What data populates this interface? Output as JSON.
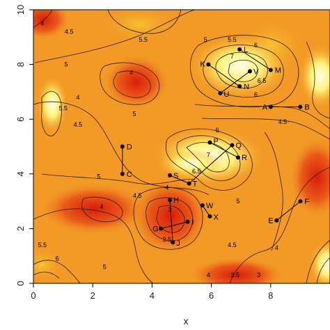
{
  "chart_data": {
    "type": "heatmap",
    "title": "",
    "xlabel": "x",
    "ylabel": "",
    "xlim": [
      0,
      10
    ],
    "ylim": [
      0,
      10
    ],
    "x_ticks": [
      "0",
      "2",
      "4",
      "6",
      "8"
    ],
    "y_ticks": [
      "0",
      "2",
      "4",
      "6",
      "8",
      "10"
    ],
    "colors": {
      "low": "#e32310",
      "mid": "#f5a623",
      "high": "#fffbe0"
    },
    "contour_labels": [
      {
        "text": "4",
        "x": 0.3,
        "y": 9.5
      },
      {
        "text": "4.5",
        "x": 1.2,
        "y": 9.2
      },
      {
        "text": "5.5",
        "x": 3.7,
        "y": 8.9
      },
      {
        "text": "4.5",
        "x": 1.5,
        "y": 5.8
      },
      {
        "text": "5",
        "x": 1.1,
        "y": 8.0
      },
      {
        "text": "4",
        "x": 3.3,
        "y": 7.7
      },
      {
        "text": "4",
        "x": 1.5,
        "y": 6.8
      },
      {
        "text": "5",
        "x": 3.4,
        "y": 6.2
      },
      {
        "text": "5.5",
        "x": 1.0,
        "y": 6.4
      },
      {
        "text": "5",
        "x": 2.2,
        "y": 3.9
      },
      {
        "text": "4",
        "x": 2.3,
        "y": 2.8
      },
      {
        "text": "4.5",
        "x": 3.5,
        "y": 3.2
      },
      {
        "text": "5",
        "x": 5.8,
        "y": 8.9
      },
      {
        "text": "5.5",
        "x": 6.7,
        "y": 8.9
      },
      {
        "text": "6",
        "x": 7.5,
        "y": 8.7
      },
      {
        "text": "7",
        "x": 6.7,
        "y": 8.3
      },
      {
        "text": "6.5",
        "x": 7.7,
        "y": 7.4
      },
      {
        "text": "6",
        "x": 7.5,
        "y": 6.9
      },
      {
        "text": "4.5",
        "x": 8.4,
        "y": 5.9
      },
      {
        "text": "6",
        "x": 6.2,
        "y": 5.6
      },
      {
        "text": "6.5",
        "x": 5.5,
        "y": 4.1
      },
      {
        "text": "7",
        "x": 5.9,
        "y": 4.7
      },
      {
        "text": "5",
        "x": 6.9,
        "y": 3.0
      },
      {
        "text": "4.5",
        "x": 6.7,
        "y": 1.4
      },
      {
        "text": "4",
        "x": 8.2,
        "y": 1.3
      },
      {
        "text": "5",
        "x": 2.4,
        "y": 0.6
      },
      {
        "text": "5.5",
        "x": 0.3,
        "y": 1.4
      },
      {
        "text": "6",
        "x": 0.8,
        "y": 0.9
      },
      {
        "text": "4",
        "x": 4.5,
        "y": 3.5
      },
      {
        "text": "3",
        "x": 4.6,
        "y": 2.7
      },
      {
        "text": "3.5",
        "x": 4.5,
        "y": 1.6
      },
      {
        "text": "3",
        "x": 7.6,
        "y": 0.3
      },
      {
        "text": "3.5",
        "x": 6.8,
        "y": 0.3
      },
      {
        "text": "4",
        "x": 5.9,
        "y": 0.3
      }
    ],
    "points": [
      {
        "label": "A",
        "x": 8.0,
        "y": 6.45
      },
      {
        "label": "B",
        "x": 9.0,
        "y": 6.45
      },
      {
        "label": "C",
        "x": 3.0,
        "y": 4.0
      },
      {
        "label": "D",
        "x": 3.0,
        "y": 5.0
      },
      {
        "label": "E",
        "x": 8.2,
        "y": 2.3
      },
      {
        "label": "F",
        "x": 9.0,
        "y": 3.0
      },
      {
        "label": "G",
        "x": 4.3,
        "y": 2.0
      },
      {
        "label": "H",
        "x": 4.6,
        "y": 3.05
      },
      {
        "label": "I",
        "x": 5.2,
        "y": 2.25
      },
      {
        "label": "J",
        "x": 4.7,
        "y": 1.5
      },
      {
        "label": "K",
        "x": 5.9,
        "y": 8.0
      },
      {
        "label": "L",
        "x": 6.95,
        "y": 8.55
      },
      {
        "label": "M",
        "x": 8.0,
        "y": 7.8
      },
      {
        "label": "N",
        "x": 6.95,
        "y": 7.2
      },
      {
        "label": "P",
        "x": 5.95,
        "y": 5.15
      },
      {
        "label": "Q",
        "x": 6.7,
        "y": 5.05
      },
      {
        "label": "R",
        "x": 6.9,
        "y": 4.6
      },
      {
        "label": "S",
        "x": 4.6,
        "y": 3.95
      },
      {
        "label": "T",
        "x": 5.25,
        "y": 3.65
      },
      {
        "label": "U",
        "x": 6.3,
        "y": 6.95
      },
      {
        "label": "V",
        "x": 7.3,
        "y": 7.75
      },
      {
        "label": "W",
        "x": 5.7,
        "y": 2.85
      },
      {
        "label": "X",
        "x": 5.95,
        "y": 2.45
      }
    ],
    "segments": [
      [
        "A",
        "B"
      ],
      [
        "C",
        "D"
      ],
      [
        "E",
        "F"
      ],
      [
        "G",
        "I"
      ],
      [
        "H",
        "J"
      ],
      [
        "K",
        "N"
      ],
      [
        "M",
        "L"
      ],
      [
        "P",
        "R"
      ],
      [
        "Q",
        "T"
      ],
      [
        "S",
        "T"
      ],
      [
        "U",
        "V"
      ],
      [
        "W",
        "X"
      ]
    ]
  }
}
